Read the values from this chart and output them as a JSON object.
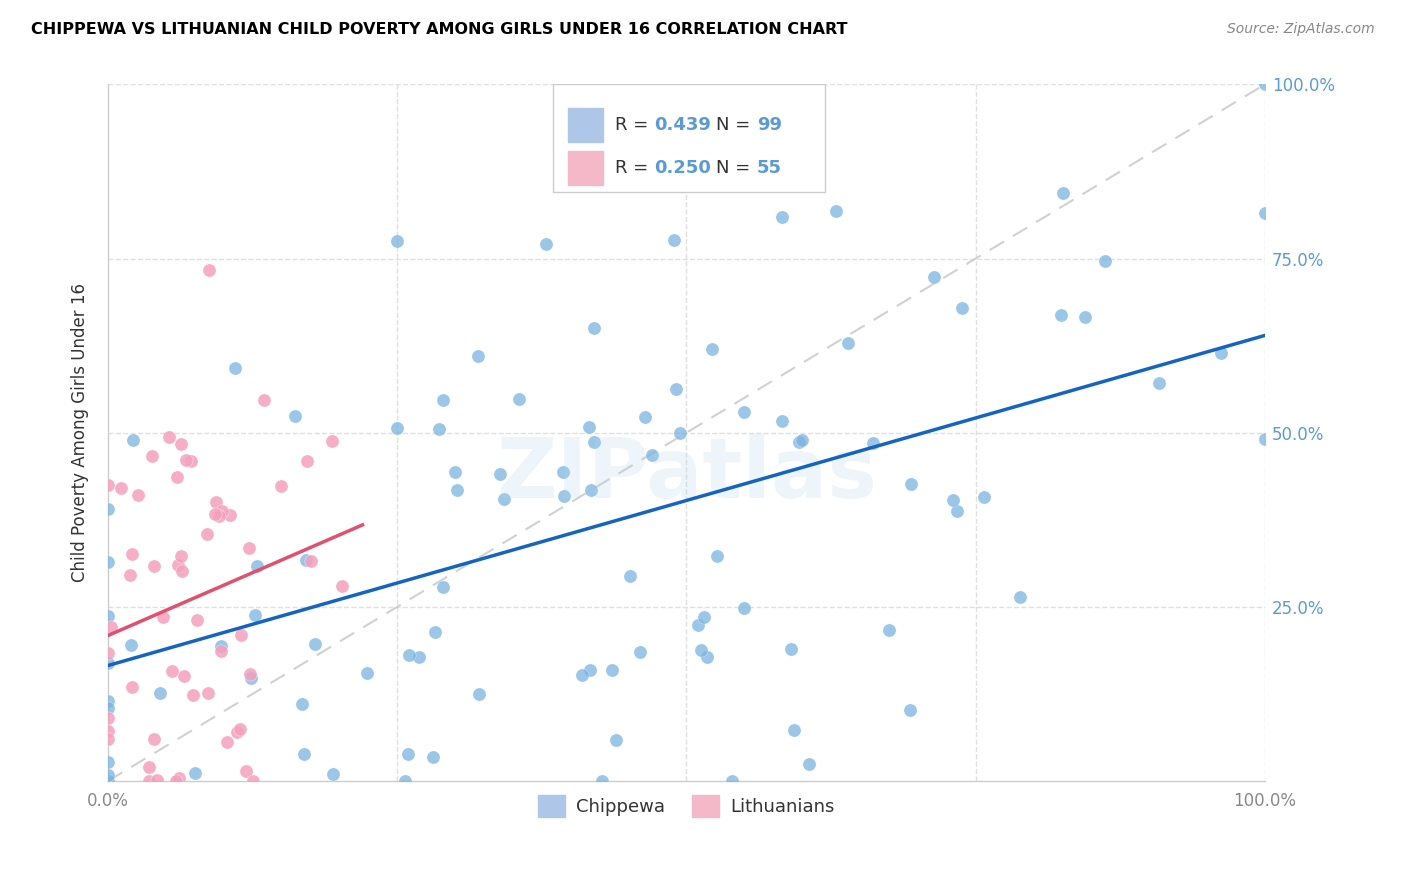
{
  "title": "CHIPPEWA VS LITHUANIAN CHILD POVERTY AMONG GIRLS UNDER 16 CORRELATION CHART",
  "source": "Source: ZipAtlas.com",
  "ylabel": "Child Poverty Among Girls Under 16",
  "watermark": "ZIPatlas",
  "legend_labels": [
    "Chippewa",
    "Lithuanians"
  ],
  "blue_dot_color": "#7ab3e0",
  "pink_dot_color": "#f4a0bc",
  "blue_line_color": "#1565c0",
  "pink_line_color": "#e05070",
  "dash_line_color": "#cccccc",
  "background_color": "#ffffff",
  "grid_color": "#e0e0e0",
  "right_tick_color": "#5b9bd5",
  "chippewa_n": 99,
  "lithuanian_n": 55,
  "chippewa_r": 0.439,
  "lithuanian_r": 0.25,
  "legend_box_color": "#aec6e8",
  "legend_box_color2": "#f4b8c8",
  "chippewa_seed": 12,
  "lithuanian_seed": 99
}
